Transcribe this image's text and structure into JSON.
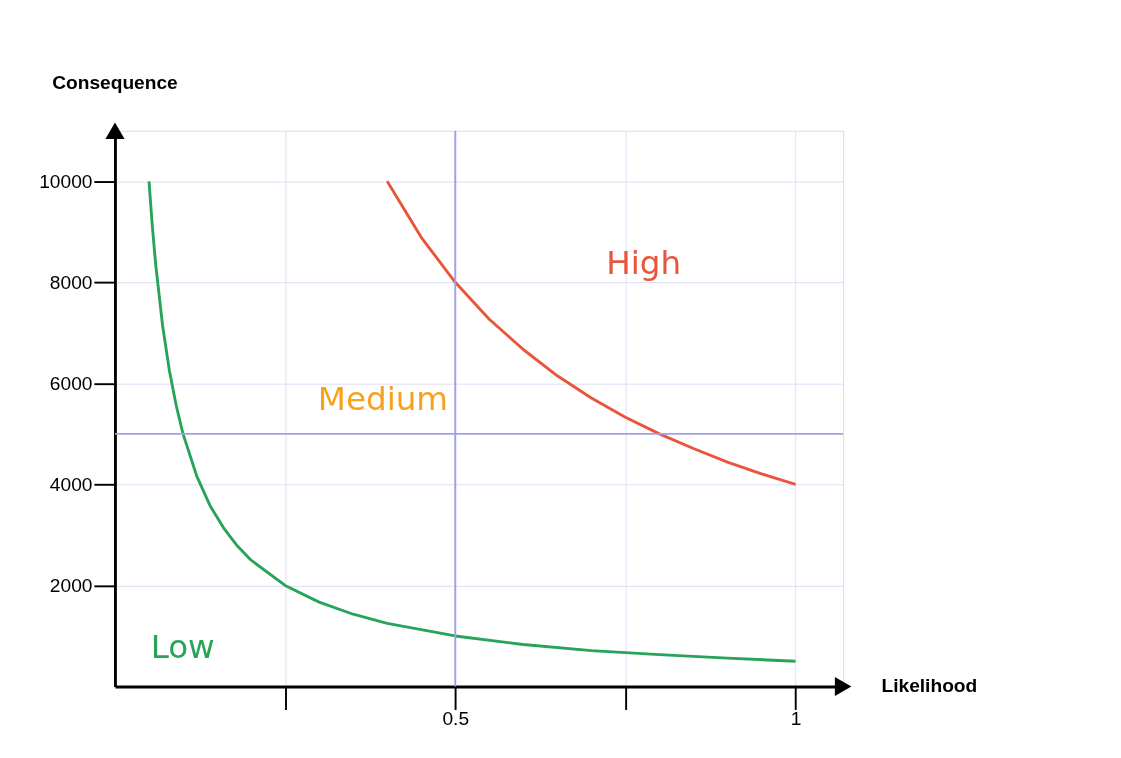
{
  "chart_data": {
    "type": "line",
    "xlabel": "Likelihood",
    "ylabel": "Consequence",
    "xlim": [
      0,
      1.07
    ],
    "ylim": [
      0,
      11000
    ],
    "xticks": [
      {
        "value": 0.25,
        "label": null
      },
      0.5,
      {
        "value": 0.75,
        "label": null
      },
      1
    ],
    "yticks": [
      2000,
      4000,
      6000,
      8000,
      10000
    ],
    "grid": true,
    "marker": "none",
    "line_style": "solid",
    "series": [
      {
        "color": "#27a35a",
        "x": [
          0.05,
          0.055,
          0.06,
          0.07,
          0.08,
          0.09,
          0.1,
          0.12,
          0.14,
          0.16,
          0.18,
          0.2,
          0.25,
          0.3,
          0.35,
          0.4,
          0.5,
          0.6,
          0.7,
          0.8,
          0.9,
          1.0
        ],
        "values": [
          10000,
          9090,
          8330,
          7140,
          6250,
          5560,
          5000,
          4170,
          3570,
          3130,
          2780,
          2500,
          2000,
          1670,
          1430,
          1250,
          1000,
          830,
          710,
          630,
          560,
          500
        ]
      },
      {
        "color": "#e8553b",
        "x": [
          0.4,
          0.45,
          0.5,
          0.55,
          0.6,
          0.65,
          0.7,
          0.75,
          0.8,
          0.85,
          0.9,
          0.95,
          1.0
        ],
        "values": [
          10000,
          8890,
          8000,
          7270,
          6670,
          6150,
          5710,
          5330,
          5000,
          4710,
          4440,
          4210,
          4000
        ]
      }
    ],
    "ref_lines": [
      {
        "axis": "y",
        "value": 5000,
        "color": "#a0a0e8"
      },
      {
        "axis": "x",
        "value": 0.5,
        "color": "#a0a0e8"
      }
    ],
    "annotations": [
      "Low",
      "Medium",
      "High"
    ]
  }
}
